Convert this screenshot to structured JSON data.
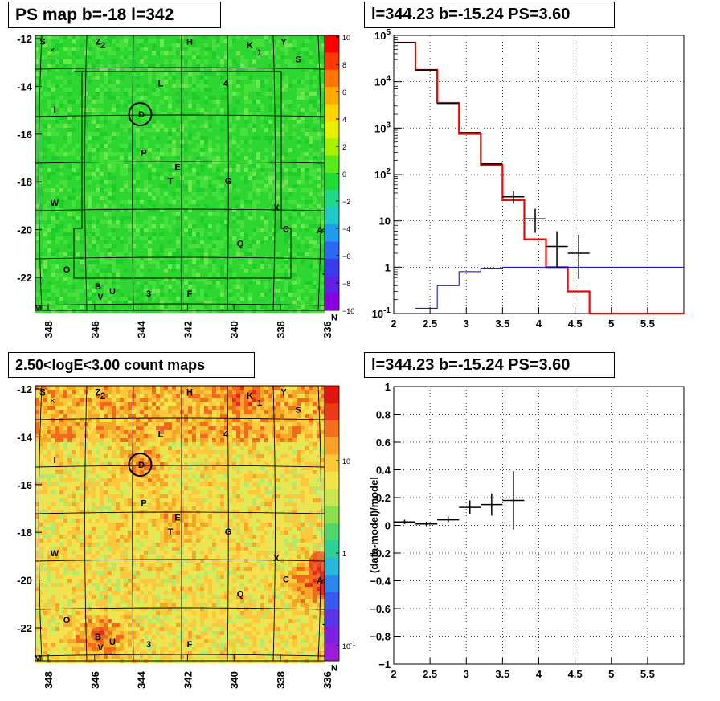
{
  "panels": {
    "map1_title": "PS map b=-18 l=342",
    "hist1_title": "l=344.23 b=-15.24 PS=3.60",
    "map2_title": "2.50<logE<3.00 count maps",
    "hist2_title": "l=344.23 b=-15.24 PS=3.60"
  },
  "colors": {
    "data": "#000000",
    "model": "#ff0000",
    "background": "#0000cc"
  },
  "chart_data": [
    {
      "type": "heatmap",
      "title": "PS map b=-18 l=342",
      "x_ticks": [
        "348",
        "346",
        "344",
        "342",
        "340",
        "338",
        "336"
      ],
      "y_ticks": [
        "-12",
        "-14",
        "-16",
        "-18",
        "-20",
        "-22"
      ],
      "colorbar_ticks": [
        "10",
        "8",
        "6",
        "4",
        "2",
        "0",
        "−2",
        "−4",
        "−6",
        "−8",
        "−10"
      ],
      "sources": [
        "S",
        "Z",
        "2",
        "H",
        "K",
        "1",
        "Y",
        "L",
        "4",
        "S",
        "I",
        "D",
        "P",
        "E",
        "T",
        "G",
        "W",
        "X",
        "C",
        "A",
        "Q",
        "R",
        "O",
        "J",
        "B",
        "U",
        "V",
        "3",
        "F",
        "M",
        "N"
      ]
    },
    {
      "type": "line",
      "title": "l=344.23 b=-15.24 PS=3.60",
      "ylog": true,
      "xlim": [
        2,
        6
      ],
      "ylim": [
        0.1,
        100000
      ],
      "x_ticks": [
        "2",
        "2.5",
        "3",
        "3.5",
        "4",
        "4.5",
        "5",
        "5.5"
      ],
      "y_ticks": [
        "10⁻¹",
        "1",
        "10",
        "10²",
        "10³",
        "10⁴",
        "10⁵"
      ],
      "series": [
        {
          "name": "",
          "style": "errorbars",
          "x": [
            2.15,
            2.45,
            2.75,
            3.05,
            3.35,
            3.65,
            3.95,
            4.25,
            4.55
          ],
          "y": [
            70000,
            18000,
            3400,
            800,
            170,
            33,
            11,
            2.8,
            2.0
          ],
          "xerr": 0.15,
          "yerr_lo": [
            0,
            0,
            0,
            0,
            0,
            0.15,
            0.3,
            0.45,
            0.55
          ],
          "yerr_hi": [
            0,
            0,
            0,
            0,
            0,
            0.12,
            0.22,
            0.33,
            0.4
          ]
        },
        {
          "name": "",
          "style": "step",
          "color": "#ff0000",
          "edges": [
            2.0,
            2.3,
            2.6,
            2.9,
            3.2,
            3.5,
            3.8,
            4.1,
            4.4,
            4.7,
            6.0
          ],
          "values": [
            70000,
            18000,
            3500,
            750,
            160,
            28,
            4,
            1,
            0.3,
            0.1
          ]
        },
        {
          "name": "",
          "style": "step",
          "color": "#0000cc",
          "edges": [
            2.3,
            2.6,
            2.9,
            3.2,
            3.5,
            6.0
          ],
          "values": [
            0.13,
            0.4,
            0.8,
            0.95,
            1.0
          ]
        }
      ]
    },
    {
      "type": "heatmap",
      "title": "2.50<logE<3.00 count maps",
      "x_ticks": [
        "348",
        "346",
        "344",
        "342",
        "340",
        "338",
        "336"
      ],
      "y_ticks": [
        "-12",
        "-14",
        "-16",
        "-18",
        "-20",
        "-22"
      ],
      "colorbar_ticks": [
        "10",
        "1",
        "10⁻¹"
      ],
      "sources": [
        "S",
        "Z",
        "2",
        "H",
        "K",
        "1",
        "Y",
        "L",
        "4",
        "S",
        "I",
        "D",
        "P",
        "E",
        "T",
        "G",
        "W",
        "X",
        "C",
        "A",
        "Q",
        "R",
        "O",
        "J",
        "B",
        "U",
        "V",
        "3",
        "F",
        "M",
        "N"
      ]
    },
    {
      "type": "scatter",
      "title": "l=344.23 b=-15.24 PS=3.60",
      "ylabel": "(data-model)/model",
      "xlim": [
        2,
        6
      ],
      "ylim": [
        -1,
        1
      ],
      "x_ticks": [
        "2",
        "2.5",
        "3",
        "3.5",
        "4",
        "4.5",
        "5",
        "5.5"
      ],
      "y_ticks": [
        "−1",
        "−0.8",
        "−0.6",
        "−0.4",
        "−0.2",
        "0",
        "0.2",
        "0.4",
        "0.6",
        "0.8",
        "1"
      ],
      "series": [
        {
          "name": "",
          "x": [
            2.15,
            2.45,
            2.75,
            3.05,
            3.35,
            3.65
          ],
          "y": [
            0.025,
            0.01,
            0.04,
            0.13,
            0.15,
            0.18
          ],
          "xerr": 0.15,
          "yerr": [
            0.015,
            0.015,
            0.025,
            0.05,
            0.08,
            0.21
          ]
        }
      ]
    }
  ]
}
